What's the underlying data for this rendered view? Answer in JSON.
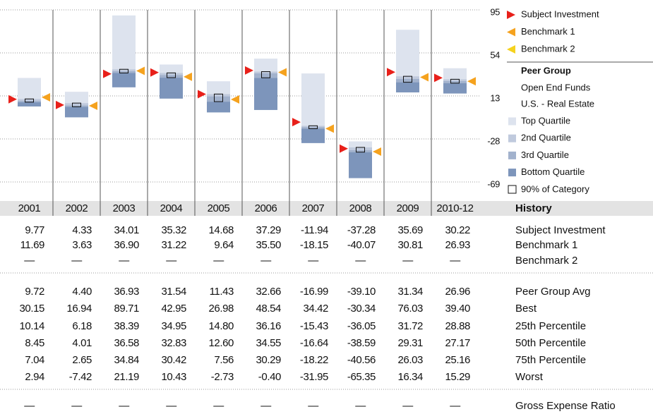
{
  "chart_data": {
    "type": "quartile",
    "ylim": [
      -69,
      95
    ],
    "yticks": [
      95,
      54,
      13,
      -28,
      -69
    ],
    "categories": [
      "2001",
      "2002",
      "2003",
      "2004",
      "2005",
      "2006",
      "2007",
      "2008",
      "2009",
      "2010-12"
    ],
    "markers": [
      {
        "name": "Subject Investment",
        "color": "#e8201a",
        "row": 0
      },
      {
        "name": "Benchmark 1",
        "color": "#f5a21e",
        "row": 1
      },
      {
        "name": "Benchmark 2",
        "color": "#f5d21e",
        "row": 2
      }
    ],
    "peer_group": {
      "title": "Peer Group",
      "lines": [
        "Open End Funds",
        "U.S. - Real Estate"
      ]
    },
    "quartiles": [
      {
        "name": "Top Quartile",
        "color": "#dde3ee"
      },
      {
        "name": "2nd Quartile",
        "color": "#c0cadd"
      },
      {
        "name": "3rd Quartile",
        "color": "#a2b2cd"
      },
      {
        "name": "Bottom Quartile",
        "color": "#7d95bb"
      }
    ],
    "range_label": "90% of Category"
  },
  "table": {
    "header": "History",
    "rows": [
      {
        "label": "Subject Investment",
        "values": [
          9.77,
          4.33,
          34.01,
          35.32,
          14.68,
          37.29,
          -11.94,
          -37.28,
          35.69,
          30.22
        ],
        "value_labels": [
          "9.77",
          "4.33",
          "34.01",
          "35.32",
          "14.68",
          "37.29",
          "-11.94",
          "-37.28",
          "35.69",
          "30.22"
        ]
      },
      {
        "label": "Benchmark 1",
        "values": [
          11.69,
          3.63,
          36.9,
          31.22,
          9.64,
          35.5,
          -18.15,
          -40.07,
          30.81,
          26.93
        ],
        "value_labels": [
          "11.69",
          "3.63",
          "36.90",
          "31.22",
          "9.64",
          "35.50",
          "-18.15",
          "-40.07",
          "30.81",
          "26.93"
        ]
      },
      {
        "label": "Benchmark 2",
        "values": [
          null,
          null,
          null,
          null,
          null,
          null,
          null,
          null,
          null,
          null
        ],
        "value_labels": [
          "—",
          "—",
          "—",
          "—",
          "—",
          "—",
          "—",
          "—",
          "—",
          "—"
        ]
      },
      {
        "label": "Peer Group Avg",
        "values": [
          9.72,
          4.4,
          36.93,
          31.54,
          11.43,
          32.66,
          -16.99,
          -39.1,
          31.34,
          26.96
        ],
        "value_labels": [
          "9.72",
          "4.40",
          "36.93",
          "31.54",
          "11.43",
          "32.66",
          "-16.99",
          "-39.10",
          "31.34",
          "26.96"
        ]
      },
      {
        "label": "Best",
        "values": [
          30.15,
          16.94,
          89.71,
          42.95,
          26.98,
          48.54,
          34.42,
          -30.34,
          76.03,
          39.4
        ],
        "value_labels": [
          "30.15",
          "16.94",
          "89.71",
          "42.95",
          "26.98",
          "48.54",
          "34.42",
          "-30.34",
          "76.03",
          "39.40"
        ]
      },
      {
        "label": "25th Percentile",
        "values": [
          10.14,
          6.18,
          38.39,
          34.95,
          14.8,
          36.16,
          -15.43,
          -36.05,
          31.72,
          28.88
        ],
        "value_labels": [
          "10.14",
          "6.18",
          "38.39",
          "34.95",
          "14.80",
          "36.16",
          "-15.43",
          "-36.05",
          "31.72",
          "28.88"
        ]
      },
      {
        "label": "50th Percentile",
        "values": [
          8.45,
          4.01,
          36.58,
          32.83,
          12.6,
          34.55,
          -16.64,
          -38.59,
          29.31,
          27.17
        ],
        "value_labels": [
          "8.45",
          "4.01",
          "36.58",
          "32.83",
          "12.60",
          "34.55",
          "-16.64",
          "-38.59",
          "29.31",
          "27.17"
        ]
      },
      {
        "label": "75th Percentile",
        "values": [
          7.04,
          2.65,
          34.84,
          30.42,
          7.56,
          30.29,
          -18.22,
          -40.56,
          26.03,
          25.16
        ],
        "value_labels": [
          "7.04",
          "2.65",
          "34.84",
          "30.42",
          "7.56",
          "30.29",
          "-18.22",
          "-40.56",
          "26.03",
          "25.16"
        ]
      },
      {
        "label": "Worst",
        "values": [
          2.94,
          -7.42,
          21.19,
          10.43,
          -2.73,
          -0.4,
          -31.95,
          -65.35,
          16.34,
          15.29
        ],
        "value_labels": [
          "2.94",
          "-7.42",
          "21.19",
          "10.43",
          "-2.73",
          "-0.40",
          "-31.95",
          "-65.35",
          "16.34",
          "15.29"
        ]
      },
      {
        "label": "Gross Expense Ratio",
        "values": [
          null,
          null,
          null,
          null,
          null,
          null,
          null,
          null,
          null,
          null
        ],
        "value_labels": [
          "—",
          "—",
          "—",
          "—",
          "—",
          "—",
          "—",
          "—",
          "—",
          "—"
        ]
      }
    ]
  }
}
